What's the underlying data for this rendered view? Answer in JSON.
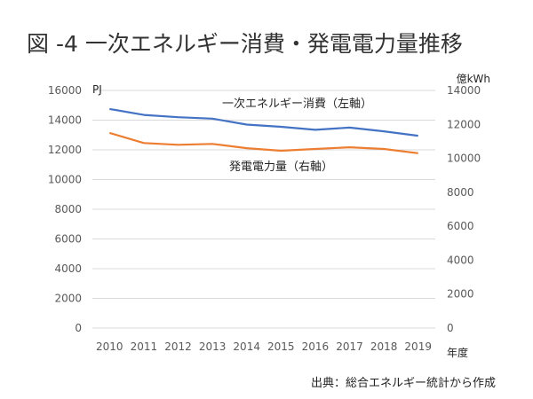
{
  "title": "図 -4 一次エネルギー消費・発電電力量推移",
  "source": "出典：総合エネルギー統計から作成",
  "chart_data": {
    "type": "line",
    "categories": [
      "2010",
      "2011",
      "2012",
      "2013",
      "2014",
      "2015",
      "2016",
      "2017",
      "2018",
      "2019"
    ],
    "xlabel": "年度",
    "y_left": {
      "unit": "PJ",
      "ylim": [
        0,
        16000
      ],
      "ticks": [
        0,
        2000,
        4000,
        6000,
        8000,
        10000,
        12000,
        14000,
        16000
      ]
    },
    "y_right": {
      "unit": "億kWh",
      "ylim": [
        0,
        14000
      ],
      "ticks": [
        0,
        2000,
        4000,
        6000,
        8000,
        10000,
        12000,
        14000
      ]
    },
    "grid": true,
    "series": [
      {
        "name": "一次エネルギー消費",
        "label": "一次エネルギー消費（左軸）",
        "axis": "left",
        "color": "#4472C4",
        "values": [
          14750,
          14350,
          14200,
          14100,
          13700,
          13550,
          13350,
          13500,
          13250,
          12950
        ]
      },
      {
        "name": "発電電力量",
        "label": "発電電力量（右軸）",
        "axis": "right",
        "color": "#ED7D31",
        "values": [
          11500,
          10900,
          10800,
          10850,
          10600,
          10450,
          10550,
          10650,
          10550,
          10300
        ]
      }
    ]
  }
}
